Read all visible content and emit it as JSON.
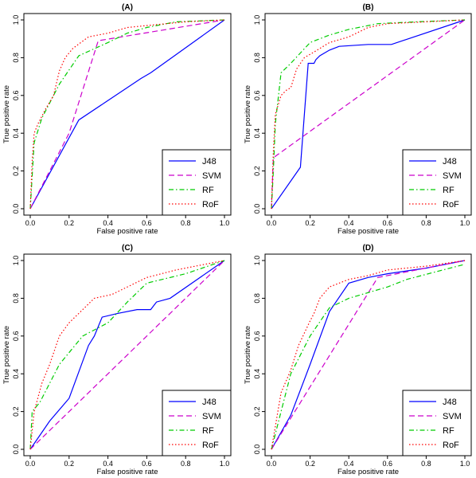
{
  "chart_data": [
    {
      "type": "line",
      "title": "(A)",
      "xlabel": "False positive rate",
      "ylabel": "True positive rate",
      "xlim": [
        0,
        1
      ],
      "ylim": [
        0,
        1
      ],
      "xticks": [
        "0.0",
        "0.2",
        "0.4",
        "0.6",
        "0.8",
        "1.0"
      ],
      "yticks": [
        "0.0",
        "0.2",
        "0.4",
        "0.6",
        "0.8",
        "1.0"
      ],
      "legend_position": "bottom-right",
      "series": [
        {
          "name": "J48",
          "color": "#0000ff",
          "dash": "solid",
          "points": [
            [
              0,
              0
            ],
            [
              0.25,
              0.47
            ],
            [
              0.57,
              0.69
            ],
            [
              0.62,
              0.72
            ],
            [
              1,
              1
            ]
          ]
        },
        {
          "name": "SVM",
          "color": "#cc00cc",
          "dash": "dashed",
          "points": [
            [
              0,
              0
            ],
            [
              0.2,
              0.4
            ],
            [
              0.35,
              0.89
            ],
            [
              1,
              1
            ]
          ]
        },
        {
          "name": "RF",
          "color": "#00cc00",
          "dash": "dotdash",
          "points": [
            [
              0,
              0
            ],
            [
              0.02,
              0.35
            ],
            [
              0.06,
              0.48
            ],
            [
              0.1,
              0.56
            ],
            [
              0.15,
              0.66
            ],
            [
              0.25,
              0.81
            ],
            [
              0.4,
              0.88
            ],
            [
              0.5,
              0.93
            ],
            [
              0.6,
              0.96
            ],
            [
              0.75,
              0.99
            ],
            [
              1,
              1
            ]
          ]
        },
        {
          "name": "RoF",
          "color": "#ff0000",
          "dash": "dotted",
          "points": [
            [
              0,
              0
            ],
            [
              0.01,
              0.25
            ],
            [
              0.02,
              0.4
            ],
            [
              0.04,
              0.45
            ],
            [
              0.08,
              0.53
            ],
            [
              0.12,
              0.6
            ],
            [
              0.15,
              0.73
            ],
            [
              0.18,
              0.8
            ],
            [
              0.22,
              0.85
            ],
            [
              0.3,
              0.91
            ],
            [
              0.4,
              0.93
            ],
            [
              0.5,
              0.96
            ],
            [
              0.6,
              0.97
            ],
            [
              0.7,
              0.98
            ],
            [
              0.8,
              0.99
            ],
            [
              1,
              1
            ]
          ]
        }
      ]
    },
    {
      "type": "line",
      "title": "(B)",
      "xlabel": "False positive rate",
      "ylabel": "True positive rate",
      "xlim": [
        0,
        1
      ],
      "ylim": [
        0,
        1
      ],
      "xticks": [
        "0.0",
        "0.2",
        "0.4",
        "0.6",
        "0.8",
        "1.0"
      ],
      "yticks": [
        "0.0",
        "0.2",
        "0.4",
        "0.6",
        "0.8",
        "1.0"
      ],
      "legend_position": "bottom-right",
      "series": [
        {
          "name": "J48",
          "color": "#0000ff",
          "dash": "solid",
          "points": [
            [
              0,
              0
            ],
            [
              0.15,
              0.22
            ],
            [
              0.19,
              0.77
            ],
            [
              0.22,
              0.77
            ],
            [
              0.23,
              0.79
            ],
            [
              0.25,
              0.81
            ],
            [
              0.3,
              0.84
            ],
            [
              0.35,
              0.86
            ],
            [
              0.5,
              0.87
            ],
            [
              0.62,
              0.87
            ],
            [
              1,
              1
            ]
          ]
        },
        {
          "name": "SVM",
          "color": "#cc00cc",
          "dash": "dashed",
          "points": [
            [
              0,
              0
            ],
            [
              0.01,
              0.27
            ],
            [
              1,
              1
            ]
          ]
        },
        {
          "name": "RF",
          "color": "#00cc00",
          "dash": "dotdash",
          "points": [
            [
              0,
              0
            ],
            [
              0.01,
              0.2
            ],
            [
              0.02,
              0.45
            ],
            [
              0.05,
              0.72
            ],
            [
              0.1,
              0.77
            ],
            [
              0.2,
              0.88
            ],
            [
              0.3,
              0.92
            ],
            [
              0.4,
              0.95
            ],
            [
              0.55,
              0.98
            ],
            [
              0.75,
              0.99
            ],
            [
              1,
              1
            ]
          ]
        },
        {
          "name": "RoF",
          "color": "#ff0000",
          "dash": "dotted",
          "points": [
            [
              0,
              0
            ],
            [
              0.01,
              0.3
            ],
            [
              0.02,
              0.5
            ],
            [
              0.05,
              0.6
            ],
            [
              0.08,
              0.63
            ],
            [
              0.1,
              0.64
            ],
            [
              0.13,
              0.74
            ],
            [
              0.17,
              0.8
            ],
            [
              0.22,
              0.83
            ],
            [
              0.3,
              0.88
            ],
            [
              0.4,
              0.91
            ],
            [
              0.5,
              0.96
            ],
            [
              0.6,
              0.98
            ],
            [
              0.8,
              0.99
            ],
            [
              1,
              1
            ]
          ]
        }
      ]
    },
    {
      "type": "line",
      "title": "(C)",
      "xlabel": "False positive rate",
      "ylabel": "True positive rate",
      "xlim": [
        0,
        1
      ],
      "ylim": [
        0,
        1
      ],
      "xticks": [
        "0.0",
        "0.2",
        "0.4",
        "0.6",
        "0.8",
        "1.0"
      ],
      "yticks": [
        "0.0",
        "0.2",
        "0.4",
        "0.6",
        "0.8",
        "1.0"
      ],
      "legend_position": "bottom-right",
      "series": [
        {
          "name": "J48",
          "color": "#0000ff",
          "dash": "solid",
          "points": [
            [
              0,
              0
            ],
            [
              0.1,
              0.15
            ],
            [
              0.2,
              0.27
            ],
            [
              0.3,
              0.55
            ],
            [
              0.33,
              0.6
            ],
            [
              0.37,
              0.7
            ],
            [
              0.45,
              0.72
            ],
            [
              0.55,
              0.74
            ],
            [
              0.62,
              0.74
            ],
            [
              0.65,
              0.78
            ],
            [
              0.72,
              0.8
            ],
            [
              1,
              1
            ]
          ]
        },
        {
          "name": "SVM",
          "color": "#cc00cc",
          "dash": "dashed",
          "points": [
            [
              0,
              0
            ],
            [
              1,
              1
            ]
          ]
        },
        {
          "name": "RF",
          "color": "#00cc00",
          "dash": "dotdash",
          "points": [
            [
              0,
              0
            ],
            [
              0.01,
              0.2
            ],
            [
              0.05,
              0.25
            ],
            [
              0.15,
              0.45
            ],
            [
              0.27,
              0.6
            ],
            [
              0.4,
              0.67
            ],
            [
              0.5,
              0.78
            ],
            [
              0.6,
              0.88
            ],
            [
              0.8,
              0.93
            ],
            [
              1,
              1
            ]
          ]
        },
        {
          "name": "RoF",
          "color": "#ff0000",
          "dash": "dotted",
          "points": [
            [
              0,
              0
            ],
            [
              0.02,
              0.2
            ],
            [
              0.06,
              0.35
            ],
            [
              0.1,
              0.45
            ],
            [
              0.15,
              0.6
            ],
            [
              0.2,
              0.67
            ],
            [
              0.28,
              0.75
            ],
            [
              0.33,
              0.8
            ],
            [
              0.42,
              0.82
            ],
            [
              0.5,
              0.86
            ],
            [
              0.6,
              0.91
            ],
            [
              0.75,
              0.95
            ],
            [
              0.85,
              0.97
            ],
            [
              1,
              1
            ]
          ]
        }
      ]
    },
    {
      "type": "line",
      "title": "(D)",
      "xlabel": "False positive rate",
      "ylabel": "True positive rate",
      "xlim": [
        0,
        1
      ],
      "ylim": [
        0,
        1
      ],
      "xticks": [
        "0.0",
        "0.2",
        "0.4",
        "0.6",
        "0.8",
        "1.0"
      ],
      "yticks": [
        "0.0",
        "0.2",
        "0.4",
        "0.6",
        "0.8",
        "1.0"
      ],
      "legend_position": "bottom-right",
      "series": [
        {
          "name": "J48",
          "color": "#0000ff",
          "dash": "solid",
          "points": [
            [
              0,
              0
            ],
            [
              0.1,
              0.18
            ],
            [
              0.2,
              0.45
            ],
            [
              0.3,
              0.73
            ],
            [
              0.4,
              0.88
            ],
            [
              0.5,
              0.91
            ],
            [
              0.6,
              0.93
            ],
            [
              0.8,
              0.96
            ],
            [
              1,
              1
            ]
          ]
        },
        {
          "name": "SVM",
          "color": "#cc00cc",
          "dash": "dashed",
          "points": [
            [
              0,
              0
            ],
            [
              0.55,
              0.91
            ],
            [
              1,
              1
            ]
          ]
        },
        {
          "name": "RF",
          "color": "#00cc00",
          "dash": "dotdash",
          "points": [
            [
              0,
              0
            ],
            [
              0.05,
              0.2
            ],
            [
              0.1,
              0.4
            ],
            [
              0.2,
              0.6
            ],
            [
              0.3,
              0.75
            ],
            [
              0.4,
              0.8
            ],
            [
              0.5,
              0.83
            ],
            [
              0.6,
              0.86
            ],
            [
              0.7,
              0.9
            ],
            [
              0.85,
              0.94
            ],
            [
              1,
              0.98
            ]
          ]
        },
        {
          "name": "RoF",
          "color": "#ff0000",
          "dash": "dotted",
          "points": [
            [
              0,
              0
            ],
            [
              0.05,
              0.3
            ],
            [
              0.1,
              0.42
            ],
            [
              0.14,
              0.55
            ],
            [
              0.2,
              0.68
            ],
            [
              0.22,
              0.72
            ],
            [
              0.25,
              0.8
            ],
            [
              0.3,
              0.86
            ],
            [
              0.35,
              0.88
            ],
            [
              0.4,
              0.9
            ],
            [
              0.5,
              0.92
            ],
            [
              0.6,
              0.95
            ],
            [
              0.8,
              0.97
            ],
            [
              1,
              1
            ]
          ]
        }
      ]
    }
  ]
}
